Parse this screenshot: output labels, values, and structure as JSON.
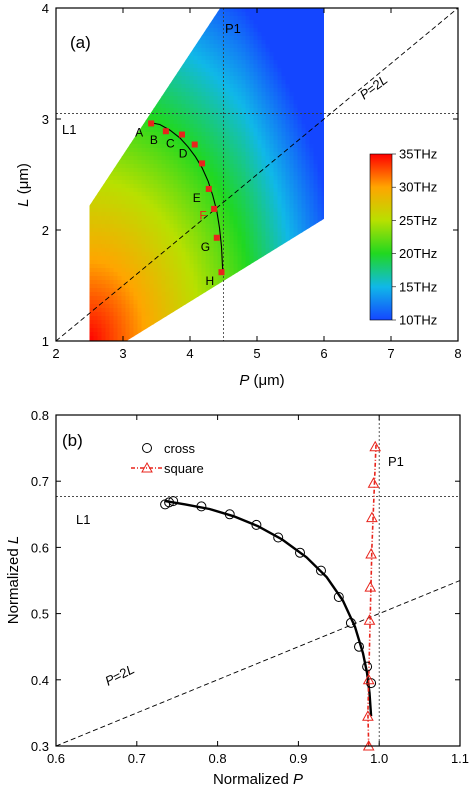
{
  "chart_data": [
    {
      "type": "heatmap",
      "panel_label": "(a)",
      "xlabel_var": "P",
      "xlabel_unit": " (μm)",
      "ylabel_var": "L",
      "ylabel_unit": " (μm)",
      "xlim": [
        2,
        8
      ],
      "ylim": [
        1,
        4
      ],
      "xticks": [
        "2",
        "3",
        "4",
        "5",
        "6",
        "7",
        "8"
      ],
      "yticks": [
        "1",
        "2",
        "3",
        "4"
      ],
      "design_region": [
        [
          2.5,
          1
        ],
        [
          3.05,
          1
        ],
        [
          6,
          2.1
        ],
        [
          6,
          4
        ],
        [
          4.45,
          4
        ],
        [
          2.5,
          2.22
        ]
      ],
      "colorbar": {
        "labels": [
          "35THz",
          "30THz",
          "25THz",
          "20THz",
          "15THz",
          "10THz"
        ],
        "values": [
          35,
          30,
          25,
          20,
          15,
          10
        ],
        "colors": [
          "#ff0000",
          "#ffa500",
          "#b8e000",
          "#20d820",
          "#10b8e8",
          "#1446ff"
        ]
      },
      "field": {
        "center_p": 2.5,
        "center_l": 1.0,
        "freq_center": 35,
        "freq_span": 27,
        "reach": 4.5
      },
      "reference_lines": {
        "P1": {
          "label": "P1",
          "x": 4.5
        },
        "L1": {
          "label": "L1",
          "y": 3.05
        },
        "diagonal": {
          "label_var": "P",
          "label_rest": "=2",
          "label_var2": "L",
          "x": [
            2.0,
            8.0
          ],
          "y": [
            1.0,
            4.0
          ]
        }
      },
      "curve": {
        "x": [
          3.38,
          3.55,
          3.7,
          3.85,
          3.97,
          4.08,
          4.18,
          4.27,
          4.34,
          4.4,
          4.44,
          4.47,
          4.49
        ],
        "y": [
          2.97,
          2.95,
          2.9,
          2.83,
          2.75,
          2.66,
          2.56,
          2.44,
          2.31,
          2.17,
          2.02,
          1.85,
          1.62
        ]
      },
      "points": [
        {
          "label": "A",
          "x": 3.42,
          "y": 2.96
        },
        {
          "label": "B",
          "x": 3.64,
          "y": 2.89
        },
        {
          "label": "C",
          "x": 3.88,
          "y": 2.86
        },
        {
          "label": "D",
          "x": 4.07,
          "y": 2.77
        },
        {
          "label": "",
          "x": 4.18,
          "y": 2.6
        },
        {
          "label": "E",
          "x": 4.28,
          "y": 2.37
        },
        {
          "label": "",
          "x": 4.36,
          "y": 2.19
        },
        {
          "label": "F",
          "x": 4.2,
          "y": 2.13
        },
        {
          "label": "G",
          "x": 4.4,
          "y": 1.93
        },
        {
          "label": "H",
          "x": 4.47,
          "y": 1.62
        }
      ]
    },
    {
      "type": "scatter",
      "panel_label": "(b)",
      "xlabel_prefix": "Normalized ",
      "xlabel_var": "P",
      "ylabel_prefix": "Normalized ",
      "ylabel_var": "L",
      "xlim": [
        0.6,
        1.1
      ],
      "ylim": [
        0.3,
        0.8
      ],
      "xticks": [
        "0.6",
        "0.7",
        "0.8",
        "0.9",
        "1.0",
        "1.1"
      ],
      "yticks": [
        "0.3",
        "0.4",
        "0.5",
        "0.6",
        "0.7",
        "0.8"
      ],
      "legend": {
        "position": "top-left",
        "entries": [
          "cross",
          "square"
        ]
      },
      "series": [
        {
          "name": "cross",
          "marker": "circle",
          "x": [
            0.735,
            0.74,
            0.745,
            0.78,
            0.815,
            0.848,
            0.875,
            0.902,
            0.928,
            0.95,
            0.965,
            0.975,
            0.985,
            0.99
          ],
          "y": [
            0.665,
            0.668,
            0.67,
            0.662,
            0.65,
            0.634,
            0.615,
            0.592,
            0.565,
            0.525,
            0.486,
            0.45,
            0.42,
            0.395
          ]
        },
        {
          "name": "square",
          "marker": "triangle",
          "color": "#e8241c",
          "x": [
            0.995,
            0.993,
            0.991,
            0.99,
            0.989,
            0.988,
            0.987,
            0.986,
            0.987
          ],
          "y": [
            0.752,
            0.697,
            0.645,
            0.59,
            0.54,
            0.49,
            0.4,
            0.345,
            0.3
          ]
        }
      ],
      "fit_curve": {
        "x": [
          0.735,
          0.76,
          0.79,
          0.82,
          0.85,
          0.88,
          0.91,
          0.935,
          0.955,
          0.97,
          0.98,
          0.985,
          0.988,
          0.99
        ],
        "y": [
          0.67,
          0.665,
          0.658,
          0.647,
          0.632,
          0.612,
          0.585,
          0.555,
          0.52,
          0.48,
          0.44,
          0.41,
          0.38,
          0.345
        ]
      },
      "square_line": {
        "x": [
          0.996,
          0.991,
          0.988,
          0.986,
          0.987
        ],
        "y": [
          0.755,
          0.6,
          0.45,
          0.35,
          0.3
        ]
      },
      "reference_lines": {
        "P1": {
          "label": "P1",
          "x": 1.0
        },
        "L1": {
          "label": "L1",
          "y": 0.677
        },
        "diagonal": {
          "label_var": "P",
          "label_rest": "=2",
          "label_var2": "L",
          "x": [
            0.6,
            1.1
          ],
          "y": [
            0.3,
            0.55
          ]
        }
      }
    }
  ]
}
